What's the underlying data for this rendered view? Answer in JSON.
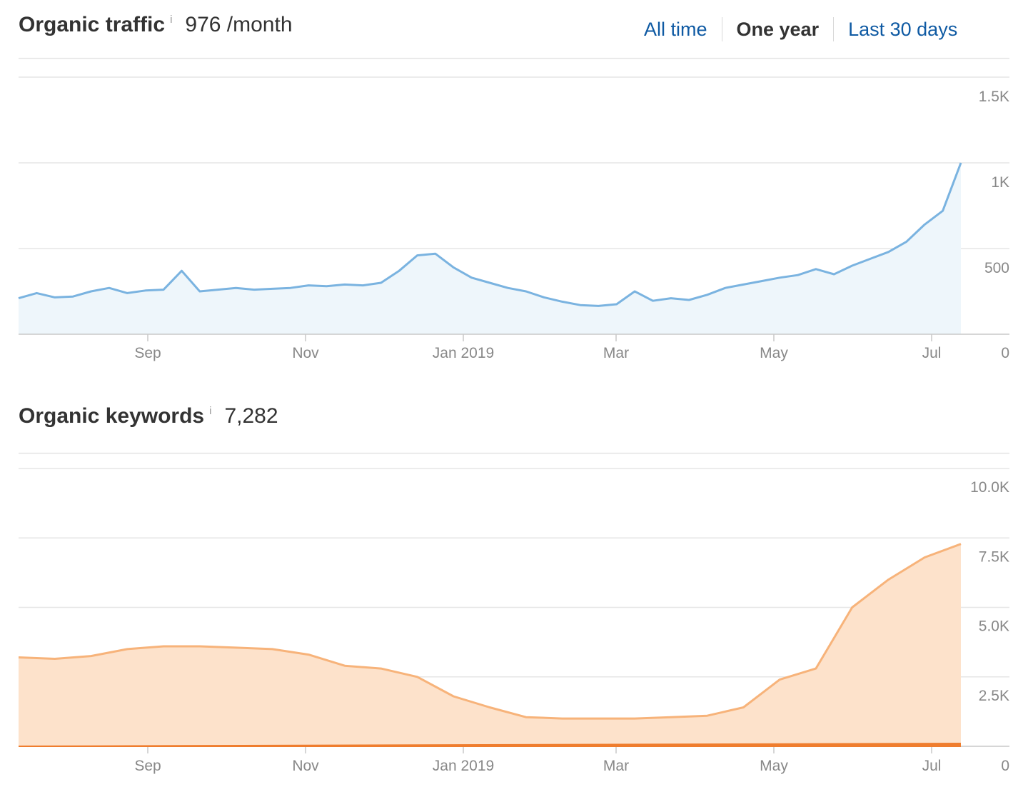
{
  "traffic": {
    "title": "Organic traffic",
    "info": "i",
    "value": "976 /month"
  },
  "keywords": {
    "title": "Organic keywords",
    "info": "i",
    "value": "7,282"
  },
  "ranges": [
    "All time",
    "One year",
    "Last 30 days"
  ],
  "active_range": "One year",
  "colors": {
    "traffic_line": "#7ab3e0",
    "traffic_fill": "#eef6fb",
    "keywords_line": "#f7b37a",
    "keywords_fill": "#fde2cb",
    "keywords_base": "#ef7d2e",
    "link": "#0f5aa3"
  },
  "chart_data": [
    {
      "type": "area",
      "x_tick_labels": [
        "Sep",
        "Nov",
        "Jan 2019",
        "Mar",
        "May",
        "Jul"
      ],
      "y_tick_labels": [
        "1.5K",
        "1K",
        "500",
        "0"
      ],
      "ylim": [
        0,
        1500
      ],
      "x": [
        "Jul 11",
        "Jul 18",
        "Jul 25",
        "Aug 1",
        "Aug 8",
        "Aug 15",
        "Aug 22",
        "Aug 29",
        "Sep 5",
        "Sep 12",
        "Sep 19",
        "Sep 26",
        "Oct 3",
        "Oct 10",
        "Oct 17",
        "Oct 24",
        "Oct 31",
        "Nov 7",
        "Nov 14",
        "Nov 21",
        "Nov 28",
        "Dec 5",
        "Dec 12",
        "Dec 19",
        "Dec 26",
        "Jan 2",
        "Jan 9",
        "Jan 16",
        "Jan 23",
        "Jan 30",
        "Feb 6",
        "Feb 13",
        "Feb 20",
        "Feb 27",
        "Mar 6",
        "Mar 13",
        "Mar 20",
        "Mar 27",
        "Apr 3",
        "Apr 10",
        "Apr 17",
        "Apr 24",
        "May 1",
        "May 8",
        "May 15",
        "May 22",
        "May 29",
        "Jun 5",
        "Jun 12",
        "Jun 19",
        "Jun 26",
        "Jul 3",
        "Jul 10"
      ],
      "series": [
        {
          "values": [
            210,
            240,
            215,
            220,
            250,
            270,
            240,
            255,
            260,
            370,
            250,
            260,
            270,
            260,
            265,
            270,
            285,
            280,
            290,
            285,
            300,
            370,
            460,
            470,
            390,
            330,
            300,
            270,
            250,
            215,
            190,
            170,
            165,
            175,
            250,
            195,
            210,
            200,
            230,
            270,
            290,
            310,
            330,
            345,
            380,
            350,
            400,
            440,
            480,
            540,
            640,
            720,
            1000
          ]
        }
      ],
      "grid": true
    },
    {
      "type": "area",
      "x_tick_labels": [
        "Sep",
        "Nov",
        "Jan 2019",
        "Mar",
        "May",
        "Jul"
      ],
      "y_tick_labels": [
        "10.0K",
        "7.5K",
        "5.0K",
        "2.5K",
        "0"
      ],
      "ylim": [
        0,
        10000
      ],
      "x": [
        "Jul 11",
        "Jul 25",
        "Aug 8",
        "Aug 22",
        "Sep 5",
        "Sep 19",
        "Oct 3",
        "Oct 17",
        "Oct 31",
        "Nov 14",
        "Nov 28",
        "Dec 12",
        "Dec 26",
        "Jan 9",
        "Jan 23",
        "Feb 6",
        "Feb 20",
        "Mar 6",
        "Mar 20",
        "Apr 3",
        "Apr 17",
        "May 1",
        "May 15",
        "May 29",
        "Jun 12",
        "Jun 26",
        "Jul 10"
      ],
      "series": [
        {
          "values": [
            3200,
            3150,
            3250,
            3500,
            3600,
            3600,
            3550,
            3500,
            3300,
            2900,
            2800,
            2500,
            1800,
            1400,
            1050,
            1000,
            1000,
            1000,
            1050,
            1100,
            1400,
            2400,
            2800,
            5000,
            6000,
            6800,
            7282
          ]
        }
      ],
      "grid": true
    }
  ]
}
